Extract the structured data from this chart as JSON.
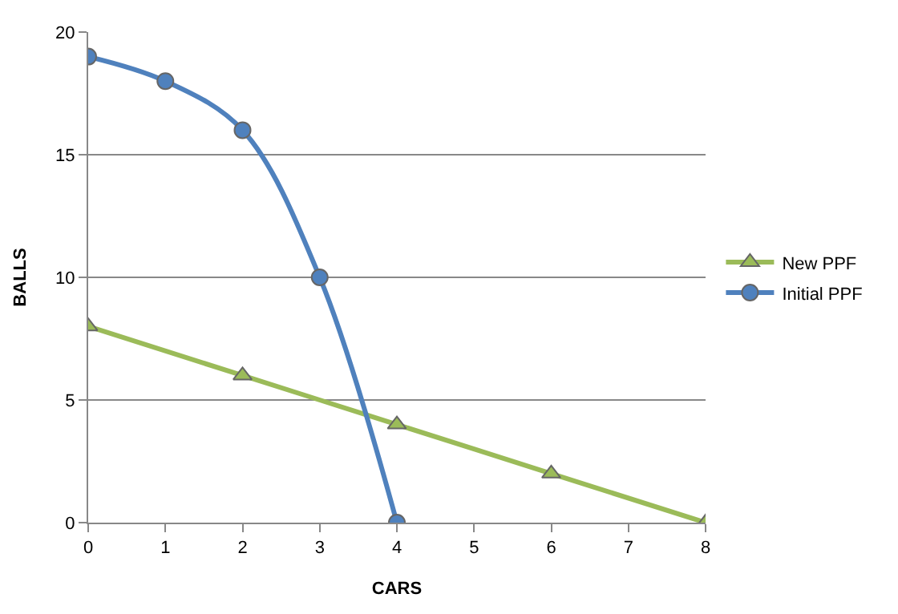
{
  "chart_data": {
    "type": "line",
    "xlabel": "CARS",
    "ylabel": "BALLS",
    "series": [
      {
        "name": "New PPF",
        "color": "#9bbb59",
        "x": [
          0,
          2,
          4,
          6,
          8
        ],
        "values": [
          8,
          6,
          4,
          2,
          0
        ],
        "marker": "triangle"
      },
      {
        "name": "Initial PPF",
        "color": "#4f81bd",
        "x": [
          0,
          1,
          2,
          3,
          4
        ],
        "values": [
          19,
          18,
          16,
          10,
          0
        ],
        "marker": "circle"
      }
    ],
    "xlim": [
      0,
      8
    ],
    "xticks": [
      0,
      1,
      2,
      3,
      4,
      5,
      6,
      7,
      8
    ],
    "ylim": [
      0,
      20
    ],
    "yticks": [
      0,
      5,
      10,
      15,
      20
    ],
    "grid": "y",
    "legend": "right",
    "line_style": "solid"
  }
}
